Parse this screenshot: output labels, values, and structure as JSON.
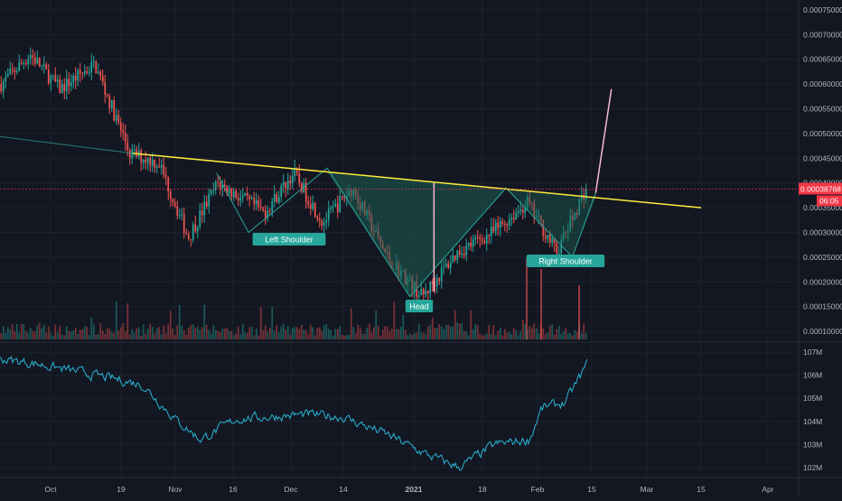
{
  "theme": {
    "background": "#131722",
    "grid": "#1e222d",
    "axis_text": "#b2b5be",
    "bull": "#26a69a",
    "bear": "#ef5350",
    "neckline": "#ffeb3b",
    "pattern_fill": "#1b5e54",
    "pattern_edge": "#26a69a",
    "projection": "#f8bbd0",
    "obv_line": "#29b6d6",
    "price_tag_bg": "#f23645"
  },
  "chart_data": [
    {
      "type": "candlestick",
      "panel": "price",
      "x_ticks": [
        "Oct",
        "19",
        "Nov",
        "16",
        "Dec",
        "14",
        "2021",
        "18",
        "Feb",
        "15",
        "Mar",
        "15",
        "Apr"
      ],
      "y_ticks": [
        "0.00010000",
        "0.00015000",
        "0.00020000",
        "0.00025000",
        "0.00030000",
        "0.00035000",
        "0.00040000",
        "0.00045000",
        "0.00050000",
        "0.00055000",
        "0.00060000",
        "0.00065000",
        "0.00070000",
        "0.00075000"
      ],
      "ylim": [
        8e-05,
        0.00077
      ],
      "current_price": "0.00038768",
      "countdown": "06:05",
      "trend": {
        "start": 0.00062,
        "end": 0.00039,
        "waypoints": [
          [
            0.0,
            0.0006
          ],
          [
            0.05,
            0.00066
          ],
          [
            0.1,
            0.00059
          ],
          [
            0.16,
            0.00064
          ],
          [
            0.22,
            0.00046
          ],
          [
            0.27,
            0.00044
          ],
          [
            0.32,
            0.00029
          ],
          [
            0.37,
            0.0004
          ],
          [
            0.45,
            0.00034
          ],
          [
            0.5,
            0.00042
          ],
          [
            0.55,
            0.00032
          ],
          [
            0.6,
            0.00039
          ],
          [
            0.66,
            0.00025
          ],
          [
            0.72,
            0.00017
          ],
          [
            0.78,
            0.00026
          ],
          [
            0.84,
            0.0003
          ],
          [
            0.9,
            0.00036
          ],
          [
            0.95,
            0.00026
          ],
          [
            1.0,
            0.00039
          ]
        ]
      },
      "pattern": {
        "name": "inverse head and shoulders",
        "labels": [
          "Left Shoulder",
          "Head",
          "Right Shoulder"
        ],
        "points": [
          [
            "2020-11-20",
            0.0003
          ],
          [
            "2020-12-10",
            0.00043
          ],
          [
            "2020-12-31",
            0.00017
          ],
          [
            "2021-01-24",
            0.00039
          ],
          [
            "2021-02-10",
            0.00025
          ],
          [
            "2021-02-16",
            0.00038
          ]
        ],
        "neckline": [
          [
            "2020-10-22",
            0.00046
          ],
          [
            "2021-03-15",
            0.00035
          ]
        ],
        "target": [
          [
            "2021-02-16",
            0.00038
          ],
          [
            "2021-02-20",
            0.00059
          ]
        ]
      }
    },
    {
      "type": "line",
      "panel": "obv",
      "y_ticks": [
        "102M",
        "103M",
        "104M",
        "105M",
        "106M",
        "107M"
      ],
      "ylim": [
        101.6,
        107.4
      ],
      "trend": {
        "waypoints": [
          [
            0.0,
            106.7
          ],
          [
            0.06,
            106.5
          ],
          [
            0.12,
            106.2
          ],
          [
            0.18,
            105.9
          ],
          [
            0.24,
            105.6
          ],
          [
            0.3,
            104.0
          ],
          [
            0.34,
            103.2
          ],
          [
            0.4,
            104.1
          ],
          [
            0.46,
            104.2
          ],
          [
            0.52,
            104.3
          ],
          [
            0.58,
            104.2
          ],
          [
            0.66,
            103.4
          ],
          [
            0.72,
            102.6
          ],
          [
            0.78,
            102.0
          ],
          [
            0.84,
            103.0
          ],
          [
            0.9,
            103.2
          ],
          [
            0.92,
            104.6
          ],
          [
            0.96,
            104.8
          ],
          [
            1.0,
            106.6
          ]
        ]
      }
    }
  ]
}
